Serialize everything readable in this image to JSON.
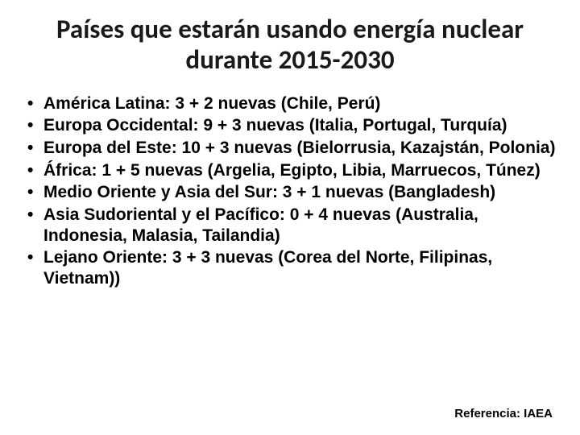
{
  "title": "Países que estarán usando energía nuclear durante 2015-2030",
  "title_fontsize": 33,
  "title_color": "#1a1a1a",
  "body_fontsize": 21,
  "body_color": "#000000",
  "background_color": "#ffffff",
  "bullets": [
    "América Latina: 3 + 2 nuevas (Chile, Perú)",
    "Europa Occidental: 9 + 3 nuevas (Italia, Portugal, Turquía)",
    "Europa del Este: 10 + 3 nuevas (Bielorrusia, Kazajstán, Polonia)",
    "África: 1 + 5 nuevas (Argelia, Egipto, Libia, Marruecos, Túnez)",
    "Medio Oriente y Asia del Sur: 3 + 1 nuevas (Bangladesh)",
    "Asia Sudoriental y el Pacífico: 0 + 4 nuevas (Australia, Indonesia, Malasia, Tailandia)",
    "Lejano Oriente: 3 + 3 nuevas (Corea del Norte, Filipinas, Vietnam))"
  ],
  "reference": "Referencia: IAEA",
  "reference_fontsize": 15
}
